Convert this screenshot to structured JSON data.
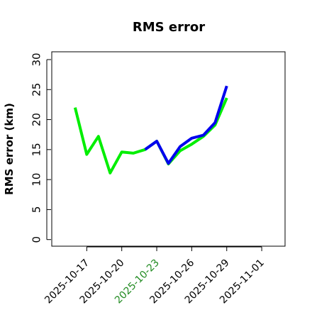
{
  "chart_data": {
    "type": "line",
    "title": "RMS error",
    "y_label": "RMS error (km)",
    "x": [
      "2025-10-16",
      "2025-10-17",
      "2025-10-18",
      "2025-10-19",
      "2025-10-20",
      "2025-10-21",
      "2025-10-22",
      "2025-10-23",
      "2025-10-24",
      "2025-10-25",
      "2025-10-26",
      "2025-10-27",
      "2025-10-28",
      "2025-10-29"
    ],
    "series": [
      {
        "name": "green",
        "color": "#00ee00",
        "values": [
          22.0,
          14.2,
          17.2,
          11.1,
          14.6,
          14.4,
          15.0,
          16.4,
          12.6,
          14.8,
          15.9,
          17.2,
          19.1,
          23.6
        ]
      },
      {
        "name": "blue",
        "color": "#0000ee",
        "values": [
          null,
          null,
          null,
          null,
          null,
          null,
          15.0,
          16.4,
          12.7,
          15.5,
          16.9,
          17.4,
          19.5,
          25.6
        ]
      }
    ],
    "xlim": [
      "2025-10-14",
      "2025-11-03"
    ],
    "xticks": [
      "2025-10-17",
      "2025-10-20",
      "2025-10-23",
      "2025-10-26",
      "2025-10-29",
      "2025-11-01"
    ],
    "xtick_label_colors": [
      "#000000",
      "#000000",
      "#228b22",
      "#000000",
      "#000000",
      "#000000"
    ],
    "ylim": [
      -1.1,
      31.3
    ],
    "yticks": [
      0,
      5,
      10,
      15,
      20,
      25,
      30
    ],
    "grid": false
  }
}
